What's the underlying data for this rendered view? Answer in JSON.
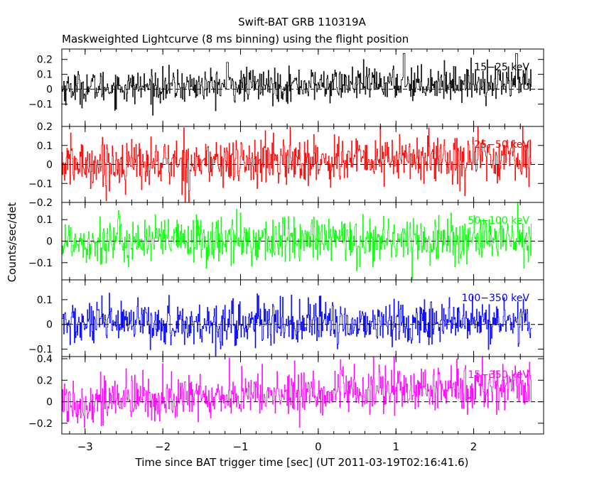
{
  "chart_data": {
    "type": "line",
    "title": "Swift-BAT GRB 110319A",
    "subtitle": "Maskweighted Lightcurve (8 ms binning) using the flight position",
    "xlabel": "Time since BAT trigger time [sec] (UT 2011-03-19T02:16:41.6)",
    "ylabel": "Counts/sec/det",
    "xlim": [
      -3.3,
      2.9
    ],
    "x_range_data": [
      -3.3,
      2.75
    ],
    "bin_width": 0.008,
    "x_ticks": [
      -3,
      -2,
      -1,
      0,
      1,
      2
    ],
    "x_tick_labels": [
      "−3",
      "−2",
      "−1",
      "0",
      "1",
      "2"
    ],
    "panels": [
      {
        "name": "15-25 keV",
        "band_label": "15−25 keV",
        "color": "#000000",
        "ylim": [
          -0.25,
          0.27
        ],
        "yticks": [
          0.2,
          0.1,
          0,
          -0.1
        ],
        "ytick_labels": [
          "0.2",
          "0.1",
          "0",
          "−0.1"
        ],
        "mean_start": 0.01,
        "mean_end": 0.05,
        "noise_sigma": 0.055,
        "notable_peaks": [
          {
            "x": -1.17,
            "y": 0.18
          },
          {
            "x": 1.1,
            "y": 0.24
          },
          {
            "x": 2.55,
            "y": 0.24
          }
        ]
      },
      {
        "name": "25-50 keV",
        "band_label": "25−50 keV",
        "color": "#ff0000",
        "ylim": [
          -0.2,
          0.2
        ],
        "yticks": [
          0.2,
          0.1,
          0,
          -0.1,
          -0.2
        ],
        "ytick_labels": [
          "0.2",
          "0.1",
          "0",
          "−0.1",
          "−0.2"
        ],
        "mean_start": 0.0,
        "mean_end": 0.04,
        "noise_sigma": 0.065,
        "notable_peaks": []
      },
      {
        "name": "50-100 keV",
        "band_label": "50−100 keV",
        "color": "#00ff00",
        "ylim": [
          -0.18,
          0.18
        ],
        "yticks": [
          0.1,
          0,
          -0.1
        ],
        "ytick_labels": [
          "0.1",
          "0",
          "−0.1"
        ],
        "mean_start": 0.0,
        "mean_end": 0.01,
        "noise_sigma": 0.055,
        "notable_peaks": []
      },
      {
        "name": "100-350 keV",
        "band_label": "100−350 keV",
        "color": "#0000ff",
        "ylim": [
          -0.13,
          0.18
        ],
        "yticks": [
          0.1,
          0,
          -0.1
        ],
        "ytick_labels": [
          "0.1",
          "0",
          "−0.1"
        ],
        "mean_start": 0.0,
        "mean_end": 0.01,
        "noise_sigma": 0.045,
        "notable_peaks": []
      },
      {
        "name": "15-350 keV",
        "band_label": "15−350 keV",
        "color": "#ff00ff",
        "ylim": [
          -0.3,
          0.42
        ],
        "yticks": [
          0.4,
          0.2,
          0,
          -0.2
        ],
        "ytick_labels": [
          "0.4",
          "0.2",
          "0",
          "−0.2"
        ],
        "mean_start": 0.0,
        "mean_end": 0.15,
        "noise_sigma": 0.11,
        "notable_peaks": []
      }
    ],
    "legend": "band label at top-right of each panel",
    "grid": false,
    "zero_line": "dashed"
  }
}
